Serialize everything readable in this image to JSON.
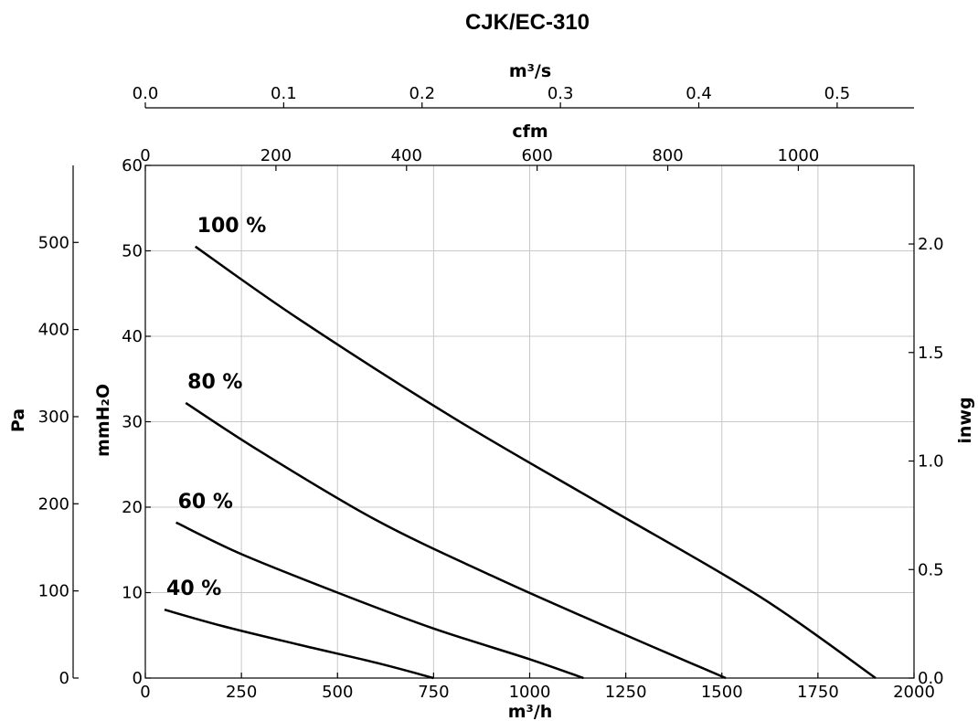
{
  "chart_data": {
    "type": "line",
    "title": "CJK/EC-310",
    "x_axes": {
      "bottom": {
        "label": "m³/h",
        "ticks": [
          "0",
          "250",
          "500",
          "750",
          "1000",
          "1250",
          "1500",
          "1750",
          "2000"
        ],
        "lim": [
          0,
          2000
        ]
      },
      "cfm": {
        "label": "cfm",
        "ticks": [
          "0",
          "200",
          "400",
          "600",
          "800",
          "1000"
        ],
        "values": [
          0,
          200,
          400,
          600,
          800,
          1000
        ]
      },
      "m3s": {
        "label": "m³/s",
        "ticks": [
          "0.0",
          "0.1",
          "0.2",
          "0.3",
          "0.4",
          "0.5"
        ],
        "values": [
          0,
          0.1,
          0.2,
          0.3,
          0.4,
          0.5
        ]
      }
    },
    "y_axes": {
      "mmH2O": {
        "label": "mmH₂O",
        "ticks": [
          "0",
          "10",
          "20",
          "30",
          "40",
          "50",
          "60"
        ],
        "lim": [
          0,
          60
        ]
      },
      "Pa": {
        "label": "Pa",
        "ticks": [
          "0",
          "100",
          "200",
          "300",
          "400",
          "500"
        ],
        "values": [
          0,
          100,
          200,
          300,
          400,
          500
        ]
      },
      "inwg": {
        "label": "inwg",
        "ticks": [
          "0.0",
          "0.5",
          "1.0",
          "1.5",
          "2.0"
        ],
        "values": [
          0,
          0.5,
          1.0,
          1.5,
          2.0
        ]
      }
    },
    "grid": true,
    "series": [
      {
        "name": "100 %",
        "x": [
          130,
          400,
          800,
          1200,
          1600,
          1900
        ],
        "y": [
          50.5,
          42,
          30.5,
          20,
          9.5,
          0
        ]
      },
      {
        "name": "80 %",
        "x": [
          105,
          300,
          600,
          900,
          1200,
          1510
        ],
        "y": [
          32.2,
          26.5,
          18.5,
          12,
          6,
          0
        ]
      },
      {
        "name": "60 %",
        "x": [
          80,
          250,
          500,
          750,
          1000,
          1140
        ],
        "y": [
          18.2,
          14.5,
          10,
          5.8,
          2.2,
          0
        ]
      },
      {
        "name": "40 %",
        "x": [
          50,
          200,
          400,
          600,
          750
        ],
        "y": [
          8,
          6.1,
          3.9,
          1.8,
          0
        ]
      }
    ]
  }
}
